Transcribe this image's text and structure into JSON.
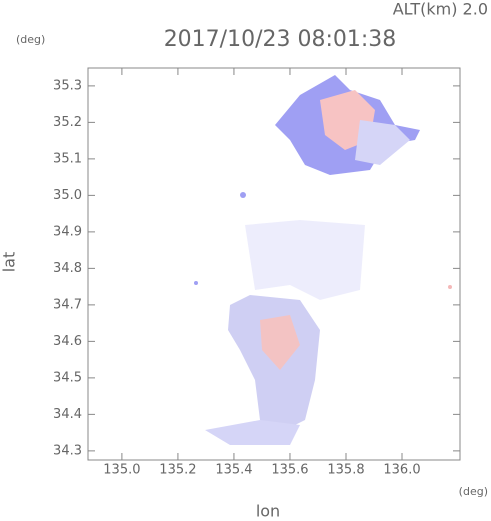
{
  "chart_data": {
    "type": "map",
    "title": "2017/10/23 08:01:38",
    "altitude_label": "ALT(km) 2.0",
    "x_label": "lon",
    "y_label": "lat",
    "x_unit": "(deg)",
    "y_unit": "(deg)",
    "xlim": [
      134.879,
      136.207
    ],
    "ylim": [
      34.275,
      35.349
    ],
    "xticks": [
      {
        "value": 135,
        "label": "135.0"
      },
      135.2,
      135.4,
      135.6,
      135.8,
      {
        "value": 136,
        "label": "136.0"
      }
    ],
    "yticks": [
      34.3,
      34.4,
      34.5,
      34.6,
      34.7,
      34.8,
      34.9,
      {
        "value": 35,
        "label": "35.0"
      },
      35.1,
      35.2,
      35.3
    ]
  }
}
